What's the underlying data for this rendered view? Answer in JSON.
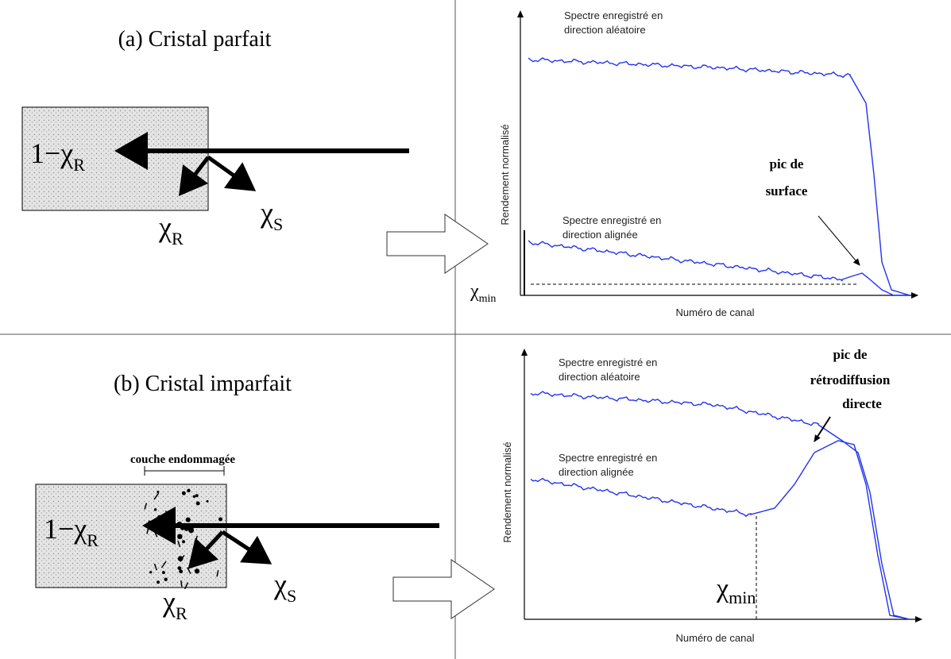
{
  "panel_a": {
    "title": "(a) Cristal parfait",
    "transmitted": {
      "main": "1−χ",
      "sub": "R"
    },
    "reflected": {
      "main": "χ",
      "sub": "R"
    },
    "scattered": {
      "main": "χ",
      "sub": "S"
    },
    "chart": {
      "random_label": [
        "Spectre enregistré en",
        "direction aléatoire"
      ],
      "aligned_label": [
        "Spectre enregistré en",
        "direction alignée"
      ],
      "y_label": "Rendement normalisé",
      "x_label": "Numéro de canal",
      "peak_label": [
        "pic de",
        "surface"
      ],
      "chi_min": {
        "main": "χ",
        "sub": "min"
      }
    }
  },
  "panel_b": {
    "title": "(b) Cristal imparfait",
    "damaged_layer": "couche endommagée",
    "transmitted": {
      "main": "1−χ",
      "sub": "R"
    },
    "reflected": {
      "main": "χ",
      "sub": "R"
    },
    "scattered": {
      "main": "χ",
      "sub": "S"
    },
    "chart": {
      "random_label": [
        "Spectre enregistré en",
        "direction aléatoire"
      ],
      "aligned_label": [
        "Spectre enregistré en",
        "direction alignée"
      ],
      "y_label": "Rendement normalisé",
      "x_label": "Numéro de canal",
      "peak_label": [
        "pic de",
        "rétrodiffusion",
        "directe"
      ],
      "chi_min": {
        "main": "χ",
        "sub": "min"
      }
    }
  }
}
